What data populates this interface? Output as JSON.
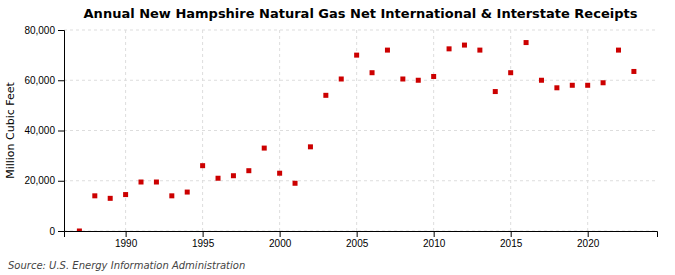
{
  "chart_data": {
    "type": "scatter",
    "title": "Annual New Hampshire Natural Gas Net International & Interstate Receipts",
    "ylabel": "Million Cubic Feet",
    "source": "Source: U.S. Energy Information Administration",
    "x": [
      1987,
      1988,
      1989,
      1990,
      1991,
      1992,
      1993,
      1994,
      1995,
      1996,
      1997,
      1998,
      1999,
      2000,
      2001,
      2002,
      2003,
      2004,
      2005,
      2006,
      2007,
      2008,
      2009,
      2010,
      2011,
      2012,
      2013,
      2014,
      2015,
      2016,
      2017,
      2018,
      2019,
      2020,
      2021,
      2022,
      2023
    ],
    "values": [
      0,
      14000,
      13000,
      14500,
      19500,
      19500,
      14000,
      15500,
      26000,
      21000,
      22000,
      24000,
      33000,
      23000,
      19000,
      33500,
      54000,
      60500,
      70000,
      63000,
      72000,
      60500,
      60000,
      61500,
      72500,
      74000,
      72000,
      55500,
      63000,
      75000,
      60000,
      57000,
      58000,
      58000,
      59000,
      72000,
      63500
    ],
    "color": "#cc0000",
    "marker": "square",
    "xlim": [
      1986,
      2024.5
    ],
    "ylim": [
      0,
      80000
    ],
    "xticks": [
      1990,
      1995,
      2000,
      2005,
      2010,
      2015,
      2020
    ],
    "yticks": [
      0,
      {
        "value": 20000,
        "label": "20,000"
      },
      {
        "value": 40000,
        "label": "40,000"
      },
      {
        "value": 60000,
        "label": "60,000"
      },
      {
        "value": 80000,
        "label": "80,000"
      }
    ],
    "grid": true
  }
}
